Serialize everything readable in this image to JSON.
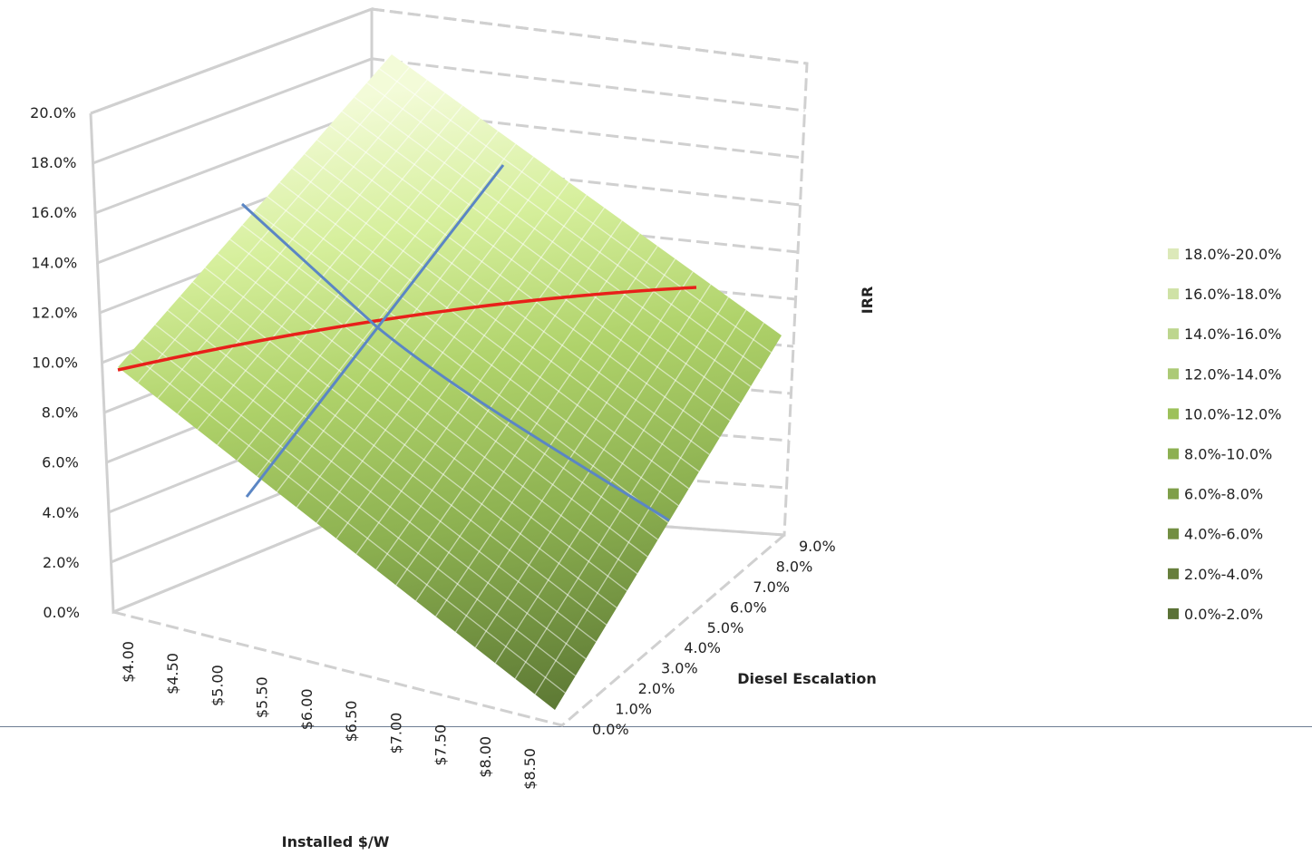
{
  "chart_data": {
    "type": "surface",
    "z_label": "IRR",
    "x_label": "Installed $/W",
    "y_label": "Diesel Escalation",
    "z_ticks": [
      "0.0%",
      "2.0%",
      "4.0%",
      "6.0%",
      "8.0%",
      "10.0%",
      "12.0%",
      "14.0%",
      "16.0%",
      "18.0%",
      "20.0%"
    ],
    "x_ticks": [
      "$4.00",
      "$4.50",
      "$5.00",
      "$5.50",
      "$6.00",
      "$6.50",
      "$7.00",
      "$7.50",
      "$8.00",
      "$8.50"
    ],
    "y_ticks": [
      "0.0%",
      "1.0%",
      "2.0%",
      "3.0%",
      "4.0%",
      "5.0%",
      "6.0%",
      "7.0%",
      "8.0%",
      "9.0%"
    ],
    "zlim": [
      0,
      20
    ],
    "surface_corners": {
      "installed_4_00_escalation_0": 10.0,
      "installed_4_00_escalation_9": 20.0,
      "installed_8_50_escalation_0": 1.0,
      "installed_8_50_escalation_9": 10.5
    },
    "legend": [
      {
        "label": "18.0%-20.0%",
        "color": "#dce9b9"
      },
      {
        "label": "16.0%-18.0%",
        "color": "#cfe2a6"
      },
      {
        "label": "14.0%-16.0%",
        "color": "#bdd68e"
      },
      {
        "label": "12.0%-14.0%",
        "color": "#acca76"
      },
      {
        "label": "10.0%-12.0%",
        "color": "#9dc15a"
      },
      {
        "label": "8.0%-10.0%",
        "color": "#8db052"
      },
      {
        "label": "6.0%-8.0%",
        "color": "#7f9f4a"
      },
      {
        "label": "4.0%-6.0%",
        "color": "#738f43"
      },
      {
        "label": "2.0%-4.0%",
        "color": "#677f3c"
      },
      {
        "label": "0.0%-2.0%",
        "color": "#5b7236"
      }
    ],
    "highlight_lines": [
      {
        "name": "",
        "color": "#e8201a"
      },
      {
        "name": "",
        "color": "#5b86c4"
      }
    ],
    "grid": true,
    "legend_position": "right"
  }
}
